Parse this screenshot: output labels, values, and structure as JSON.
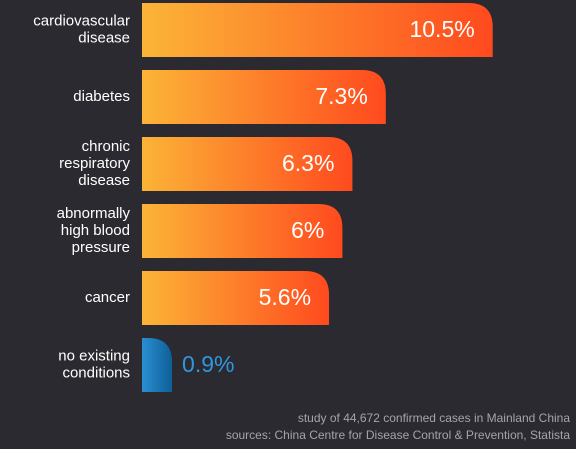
{
  "chart_data": {
    "type": "bar",
    "orientation": "horizontal",
    "categories": [
      [
        "cardiovascular",
        "disease"
      ],
      [
        "diabetes"
      ],
      [
        "chronic",
        "respiratory",
        "disease"
      ],
      [
        "abnormally",
        "high blood",
        "pressure"
      ],
      [
        "cancer"
      ],
      [
        "no existing",
        "conditions"
      ]
    ],
    "values": [
      10.5,
      7.3,
      6.3,
      6,
      5.6,
      0.9
    ],
    "value_labels": [
      "10.5%",
      "7.3%",
      "6.3%",
      "6%",
      "5.6%",
      "0.9%"
    ],
    "xlim": [
      0,
      11.2
    ],
    "grid": false,
    "colors": {
      "bar_gradient_start": "#fbb437",
      "bar_gradient_end": "#ff4a1e",
      "highlight_gradient_start": "#2a8fd2",
      "highlight_gradient_end": "#0e5f98",
      "label": "#ffffff",
      "highlight_label": "#2f97df"
    },
    "highlight_index": 5
  },
  "footnote": {
    "line1": "study of 44,672 confirmed cases in Mainland China",
    "line2": "sources: China Centre for Disease Control & Prevention, Statista"
  }
}
